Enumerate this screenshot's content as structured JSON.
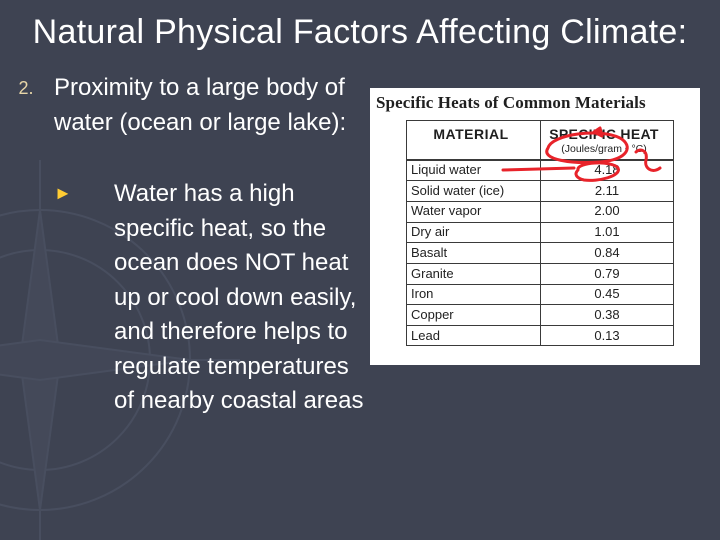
{
  "slide": {
    "title": "Natural Physical Factors Affecting Climate:",
    "point_number": "2.",
    "point_text": "Proximity to a large body of water (ocean or large lake):",
    "sub_bullet_icon": "triangle-bullet-icon",
    "sub_text": "Water has a high specific heat, so the ocean does NOT heat up or cool down easily, and therefore helps to regulate temperatures of nearby coastal areas"
  },
  "table": {
    "title": "Specific Heats of Common Materials",
    "col_material": "MATERIAL",
    "col_heat": "SPECIFIC HEAT",
    "col_heat_units": "(Joules/gram • °C)",
    "rows": [
      {
        "material": "Liquid water",
        "value": "4.18"
      },
      {
        "material": "Solid water (ice)",
        "value": "2.11"
      },
      {
        "material": "Water vapor",
        "value": "2.00"
      },
      {
        "material": "Dry air",
        "value": "1.01"
      },
      {
        "material": "Basalt",
        "value": "0.84"
      },
      {
        "material": "Granite",
        "value": "0.79"
      },
      {
        "material": "Iron",
        "value": "0.45"
      },
      {
        "material": "Copper",
        "value": "0.38"
      },
      {
        "material": "Lead",
        "value": "0.13"
      }
    ]
  },
  "colors": {
    "background": "#3e4352",
    "text": "#ffffff",
    "bullet_accent": "#ffcc33",
    "annotation": "#e8232a"
  }
}
